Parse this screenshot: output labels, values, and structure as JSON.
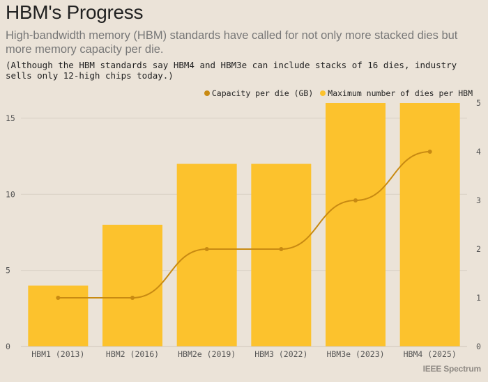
{
  "chart_data": {
    "type": "bar",
    "title": "HBM's Progress",
    "subtitle": "High-bandwidth memory (HBM) standards have called for not only more stacked dies but more memory capacity per die.",
    "note": "(Although the HBM standards say HBM4 and HBM3e can include stacks of 16 dies, industry sells only 12-high chips today.)",
    "categories": [
      "HBM1 (2013)",
      "HBM2 (2016)",
      "HBM2e (2019)",
      "HBM3 (2022)",
      "HBM3e (2023)",
      "HBM4 (2025)"
    ],
    "series": [
      {
        "name": "Capacity per die (GB)",
        "type": "line",
        "axis": "right",
        "values": [
          1,
          1,
          2,
          2,
          3,
          4
        ],
        "color": "#c88a12"
      },
      {
        "name": "Maximum number of dies per HBM",
        "type": "bar",
        "axis": "left",
        "values": [
          4,
          8,
          12,
          12,
          16,
          16
        ],
        "color": "#fcc22d"
      }
    ],
    "left_axis": {
      "ylim": [
        0,
        16
      ],
      "ticks": [
        0,
        5,
        10,
        15
      ]
    },
    "right_axis": {
      "ylim": [
        0,
        5
      ],
      "ticks": [
        0,
        1,
        2,
        3,
        4,
        5
      ]
    },
    "legend_position": "top-right",
    "grid": true
  },
  "brand": "IEEE Spectrum"
}
